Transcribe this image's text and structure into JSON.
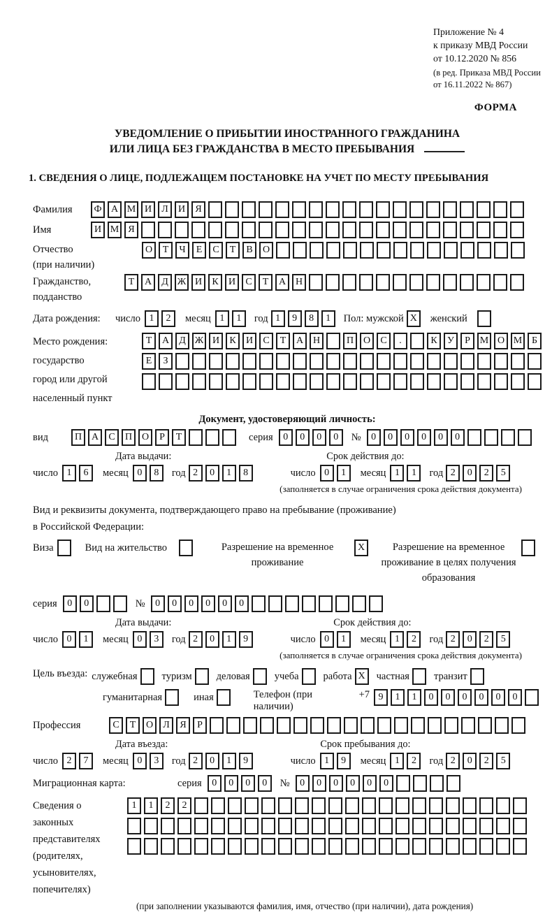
{
  "appendix": {
    "lines": [
      "Приложение № 4",
      "к приказу МВД России",
      "от 10.12.2020 № 856"
    ],
    "revision": [
      "(в ред. Приказа МВД России",
      "от 16.11.2022 № 867)"
    ],
    "forma": "ФОРМА"
  },
  "title": {
    "line1": "УВЕДОМЛЕНИЕ О ПРИБЫТИИ ИНОСТРАННОГО ГРАЖДАНИНА",
    "line2": "ИЛИ ЛИЦА БЕЗ ГРАЖДАНСТВА В МЕСТО ПРЕБЫВАНИЯ"
  },
  "section1_heading": "1. СВЕДЕНИЯ О ЛИЦЕ, ПОДЛЕЖАЩЕМ ПОСТАНОВКЕ НА УЧЕТ ПО МЕСТУ ПРЕБЫВАНИЯ",
  "common": {
    "day": "число",
    "month": "месяц",
    "year": "год",
    "seria": "серия",
    "num": "№"
  },
  "surname": {
    "label": "Фамилия",
    "row": {
      "value": "ФАМИЛИЯ",
      "cells": 26
    }
  },
  "firstname": {
    "label": "Имя",
    "row": {
      "value": "ИМЯ",
      "cells": 26
    }
  },
  "patronymic": {
    "label1": "Отчество",
    "label2": "(при наличии)",
    "row": {
      "value": "ОТЧЕСТВО",
      "cells": 23
    }
  },
  "citizenship": {
    "label1": "Гражданство,",
    "label2": "подданство",
    "row": {
      "value": "ТАДЖИКИСТАН",
      "cells": 24
    }
  },
  "birthdate": {
    "label": "Дата рождения:",
    "day": {
      "value": "12",
      "cells": 2
    },
    "month": {
      "value": "11",
      "cells": 2
    },
    "year": {
      "value": "1981",
      "cells": 4
    },
    "sex_label": "Пол: мужской",
    "male_checked": "X",
    "female_label": "женский",
    "female_checked": ""
  },
  "birthplace": {
    "labels": [
      "Место рождения:",
      "государство",
      "город или другой",
      "населенный пункт"
    ],
    "row1": {
      "value": "ТАДЖИКИСТАН ПОС. КУРМОМБ",
      "cells": 24
    },
    "row2": {
      "value": "ЕЗ",
      "cells": 24
    },
    "row3": {
      "value": "",
      "cells": 24
    }
  },
  "identity_doc": {
    "heading": "Документ, удостоверяющий личность:",
    "vid_label": "вид",
    "vid": {
      "value": "ПАСПОРТ",
      "cells": 10
    },
    "seria": {
      "value": "0000",
      "cells": 4
    },
    "num": {
      "value": "000000",
      "cells": 10
    },
    "issue_label": "Дата выдачи:",
    "expiry_label": "Срок действия до:",
    "issue_day": {
      "value": "16",
      "cells": 2
    },
    "issue_month": {
      "value": "08",
      "cells": 2
    },
    "issue_year": {
      "value": "2018",
      "cells": 4
    },
    "expiry_day": {
      "value": "01",
      "cells": 2
    },
    "expiry_month": {
      "value": "11",
      "cells": 2
    },
    "expiry_year": {
      "value": "2025",
      "cells": 4
    },
    "note": "(заполняется в случае ограничения срока действия документа)"
  },
  "residence_doc": {
    "line1": "Вид и реквизиты документа, подтверждающего право на пребывание (проживание)",
    "line2": "в Российской Федерации:",
    "options": [
      {
        "label": "Виза",
        "checked": ""
      },
      {
        "label": "Вид на жительство",
        "checked": ""
      },
      {
        "label": "Разрешение на временное проживание",
        "checked": "X"
      },
      {
        "label": "Разрешение на временное проживание в целях получения образования",
        "checked": ""
      }
    ],
    "seria": {
      "value": "00",
      "cells": 4
    },
    "num": {
      "value": "000000",
      "cells": 14
    },
    "issue_label": "Дата выдачи:",
    "expiry_label": "Срок действия до:",
    "issue_day": {
      "value": "01",
      "cells": 2
    },
    "issue_month": {
      "value": "03",
      "cells": 2
    },
    "issue_year": {
      "value": "2019",
      "cells": 4
    },
    "expiry_day": {
      "value": "01",
      "cells": 2
    },
    "expiry_month": {
      "value": "12",
      "cells": 2
    },
    "expiry_year": {
      "value": "2025",
      "cells": 4
    },
    "note": "(заполняется в случае ограничения срока действия документа)"
  },
  "purpose": {
    "label": "Цель въезда:",
    "options": [
      {
        "label": "служебная",
        "checked": ""
      },
      {
        "label": "туризм",
        "checked": ""
      },
      {
        "label": "деловая",
        "checked": ""
      },
      {
        "label": "учеба",
        "checked": ""
      },
      {
        "label": "работа",
        "checked": "X"
      },
      {
        "label": "частная",
        "checked": ""
      },
      {
        "label": "транзит",
        "checked": ""
      }
    ],
    "options2": [
      {
        "label": "гуманитарная",
        "checked": ""
      },
      {
        "label": "иная",
        "checked": ""
      }
    ],
    "phone_label": "Телефон (при наличии)",
    "phone_prefix": "+7",
    "phone": {
      "value": "911000000",
      "cells": 10
    }
  },
  "profession": {
    "label": "Профессия",
    "row": {
      "value": "СТОЛЯР",
      "cells": 25
    }
  },
  "entry_dates": {
    "entry_label": "Дата въезда:",
    "stay_label": "Срок пребывания до:",
    "entry_day": {
      "value": "27",
      "cells": 2
    },
    "entry_month": {
      "value": "03",
      "cells": 2
    },
    "entry_year": {
      "value": "2019",
      "cells": 4
    },
    "stay_day": {
      "value": "19",
      "cells": 2
    },
    "stay_month": {
      "value": "12",
      "cells": 2
    },
    "stay_year": {
      "value": "2025",
      "cells": 4
    }
  },
  "migration_card": {
    "label": "Миграционная карта:",
    "seria": {
      "value": "0000",
      "cells": 4
    },
    "num": {
      "value": "000000",
      "cells": 10
    }
  },
  "representatives": {
    "labels": [
      "Сведения о",
      "законных",
      "представителях",
      "(родителях,",
      "усыновителях,",
      "попечителях)"
    ],
    "row1": {
      "value": "1122",
      "cells": 24
    },
    "row2": {
      "value": "",
      "cells": 24
    },
    "row3": {
      "value": "",
      "cells": 24
    },
    "note": "(при заполнении указываются фамилия, имя, отчество (при наличии), дата рождения)"
  }
}
